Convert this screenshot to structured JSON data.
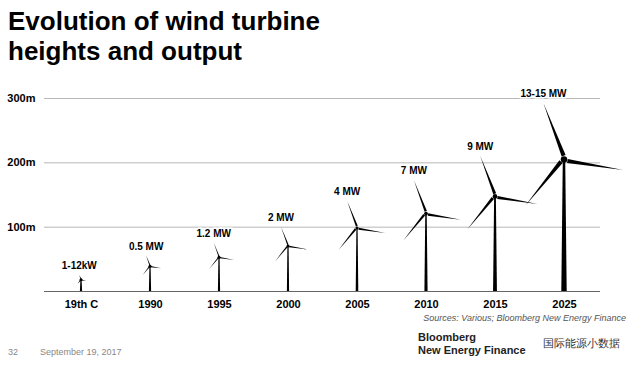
{
  "chart_data": {
    "type": "pictogram",
    "title": "Evolution of wind turbine heights and output",
    "categories": [
      "19th C",
      "1990",
      "1995",
      "2000",
      "2005",
      "2010",
      "2015",
      "2025"
    ],
    "values": [
      25,
      55,
      75,
      100,
      140,
      172,
      210,
      292
    ],
    "output_labels": [
      "1-12kW",
      "0.5 MW",
      "1.2 MW",
      "2 MW",
      "4 MW",
      "7 MW",
      "9 MW",
      "13-15 MW"
    ],
    "color": "#000000",
    "ylim": [
      0,
      300
    ],
    "yticks": [
      {
        "value": 100,
        "label": "100m"
      },
      {
        "value": 200,
        "label": "200m"
      },
      {
        "value": 300,
        "label": "300m"
      }
    ],
    "grid": true,
    "sources": "Sources: Various; Bloomberg New Energy Finance",
    "page": "32",
    "date": "September 19, 2017",
    "logo": [
      "Bloomberg",
      "New Energy Finance"
    ],
    "watermark": "国际能源小数据"
  }
}
